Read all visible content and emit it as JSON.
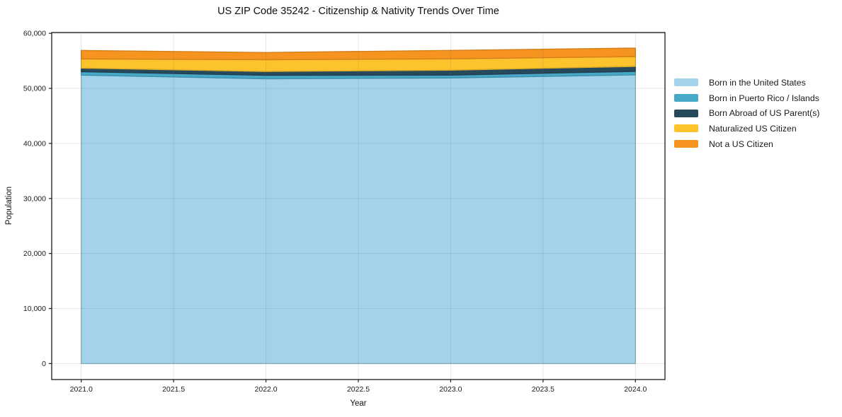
{
  "title": "US ZIP Code 35242 - Citizenship & Nativity Trends Over Time",
  "chart_data": {
    "type": "area",
    "stacked": true,
    "title": "US ZIP Code 35242 - Citizenship & Nativity Trends Over Time",
    "xlabel": "Year",
    "ylabel": "Population",
    "x": [
      2021,
      2022,
      2023,
      2024
    ],
    "series": [
      {
        "name": "Born in the United States",
        "color": "#A3D3EA",
        "values": [
          52400,
          51750,
          51900,
          52450
        ]
      },
      {
        "name": "Born in Puerto Rico / Islands",
        "color": "#47A8C8",
        "values": [
          640,
          620,
          510,
          640
        ]
      },
      {
        "name": "Born Abroad of US Parent(s)",
        "color": "#27495C",
        "values": [
          640,
          700,
          900,
          900
        ]
      },
      {
        "name": "Naturalized US Citizen",
        "color": "#FCC32D",
        "values": [
          1670,
          2150,
          2050,
          1790
        ]
      },
      {
        "name": "Not a US Citizen",
        "color": "#F7941F",
        "values": [
          1540,
          1300,
          1540,
          1540
        ]
      }
    ],
    "totals": [
      56890,
      56520,
      56900,
      57320
    ],
    "xticks": [
      2021.0,
      2021.5,
      2022.0,
      2022.5,
      2023.0,
      2023.5,
      2024.0
    ],
    "xtick_labels": [
      "2021.0",
      "2021.5",
      "2022.0",
      "2022.5",
      "2023.0",
      "2023.5",
      "2024.0"
    ],
    "yticks": [
      0,
      10000,
      20000,
      30000,
      40000,
      50000,
      60000
    ],
    "ytick_labels": [
      "0",
      "10,000",
      "20,000",
      "30,000",
      "40,000",
      "50,000",
      "60,000"
    ],
    "xlim": [
      2020.84,
      2024.16
    ],
    "ylim": [
      -2900,
      60150
    ],
    "grid": true,
    "legend_position": "right-outside",
    "colors": {
      "spine": "#1a1a1a",
      "tick_text": "#1a1a1a",
      "grid": "rgba(110,110,110,0.18)"
    }
  }
}
